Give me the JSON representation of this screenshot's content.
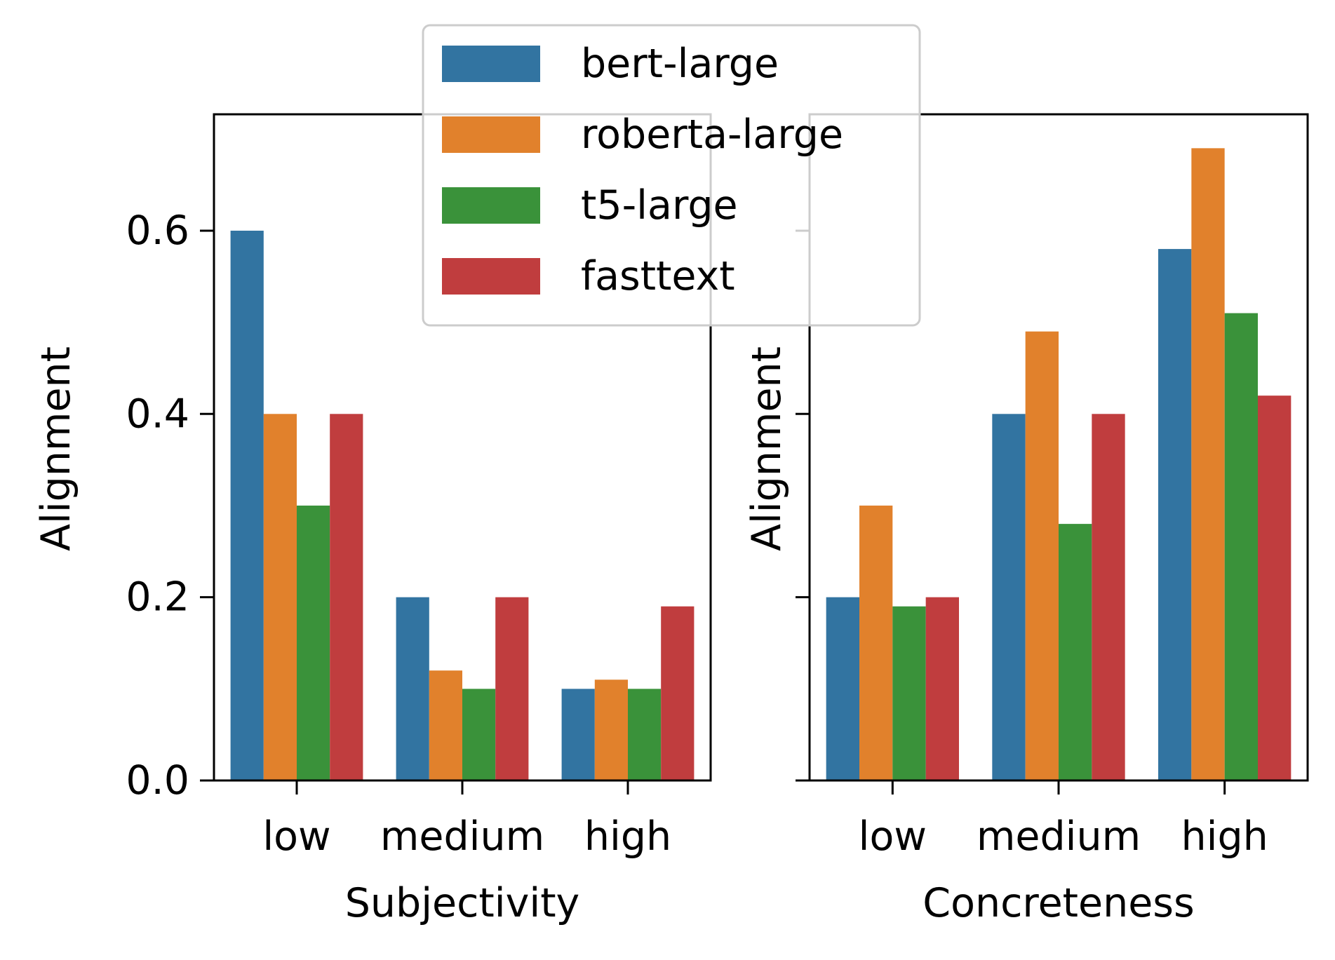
{
  "chart_data": [
    {
      "type": "bar",
      "xlabel": "Subjectivity",
      "ylabel": "Alignment",
      "categories": [
        "low",
        "medium",
        "high"
      ],
      "series": [
        {
          "name": "bert-large",
          "values": [
            0.6,
            0.2,
            0.1
          ]
        },
        {
          "name": "roberta-large",
          "values": [
            0.4,
            0.12,
            0.11
          ]
        },
        {
          "name": "t5-large",
          "values": [
            0.3,
            0.1,
            0.1
          ]
        },
        {
          "name": "fasttext",
          "values": [
            0.4,
            0.2,
            0.19
          ]
        }
      ],
      "ylim": [
        0,
        0.727
      ],
      "yticks": [
        "0.0",
        "0.2",
        "0.4",
        "0.6"
      ],
      "grid": false
    },
    {
      "type": "bar",
      "xlabel": "Concreteness",
      "ylabel": "Alignment",
      "categories": [
        "low",
        "medium",
        "high"
      ],
      "series": [
        {
          "name": "bert-large",
          "values": [
            0.2,
            0.4,
            0.58
          ]
        },
        {
          "name": "roberta-large",
          "values": [
            0.3,
            0.49,
            0.69
          ]
        },
        {
          "name": "t5-large",
          "values": [
            0.19,
            0.28,
            0.51
          ]
        },
        {
          "name": "fasttext",
          "values": [
            0.2,
            0.4,
            0.42
          ]
        }
      ],
      "ylim": [
        0,
        0.727
      ],
      "yticks": [],
      "grid": false
    }
  ],
  "legend": {
    "placement": "top-center",
    "entries": [
      "bert-large",
      "roberta-large",
      "t5-large",
      "fasttext"
    ]
  },
  "colors": {
    "bert-large": "#3274a1",
    "roberta-large": "#e1812c",
    "t5-large": "#3a923a",
    "fasttext": "#c03d3e"
  }
}
